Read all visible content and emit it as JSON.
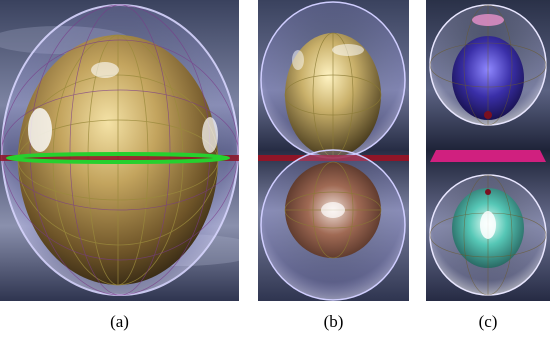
{
  "panels": [
    {
      "id": "a",
      "caption": "(a)"
    },
    {
      "id": "b",
      "caption": "(b)"
    },
    {
      "id": "c",
      "caption": "(c)"
    }
  ],
  "colors": {
    "sky_dark": "#2e3650",
    "sky_light": "#8a90ad",
    "gold_sphere": "#c9b06a",
    "copper_sphere": "#8a5a44",
    "glass_shell": "#b9b6ff",
    "blue_sphere": "#3a2fa8",
    "teal_sphere": "#56c7b6",
    "green_ring": "#22c02a",
    "red_plane": "#b3122a",
    "magenta_plane": "#d0207f",
    "wireframe": "#a08a40"
  }
}
